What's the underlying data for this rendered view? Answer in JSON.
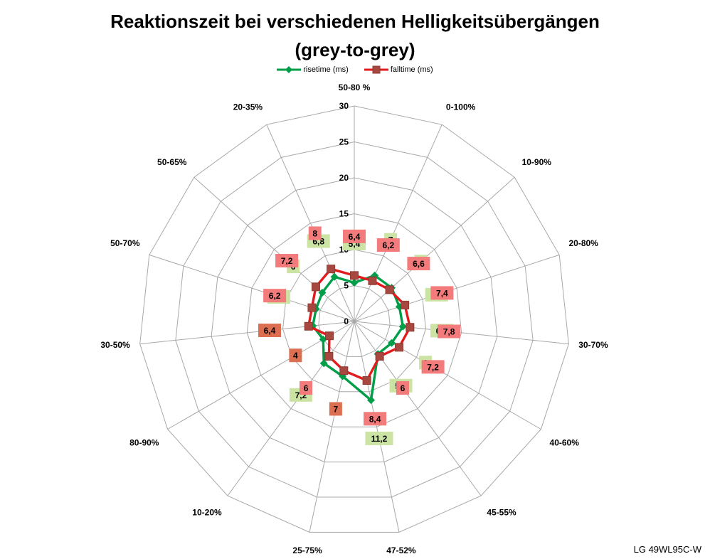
{
  "title": {
    "line1": "Reaktionszeit bei verschiedenen Helligkeitsübergängen",
    "line2": "(grey-to-grey)"
  },
  "footer": "LG 49WL95C-W",
  "chart_data": {
    "type": "radar",
    "categories": [
      "50-80 %",
      "0-100%",
      "10-90%",
      "20-80%",
      "30-70%",
      "40-60%",
      "45-55%",
      "47-52%",
      "25-75%",
      "10-20%",
      "80-90%",
      "30-50%",
      "50-70%",
      "50-65%",
      "20-35%"
    ],
    "axis": {
      "min": 0,
      "max": 30,
      "step": 5,
      "ticks": [
        "0",
        "5",
        "10",
        "15",
        "20",
        "25",
        "30"
      ]
    },
    "grid_color": "#a8a8a8",
    "series": [
      {
        "name": "risetime (ms)",
        "line_color": "#009E48",
        "marker": "diamond",
        "marker_color": "#009E48",
        "label_box_color": "#cbe3a3",
        "values": [
          5.4,
          7,
          7,
          6.6,
          6.8,
          6,
          5.6,
          11.2,
          7.8,
          7.2,
          5,
          5.8,
          5.6,
          6,
          6.8
        ],
        "labels": [
          "5,4",
          "7",
          "7",
          "6,6",
          "6,8",
          "6",
          "5,6",
          "11,2",
          null,
          "7,2",
          null,
          null,
          "5,6",
          "6",
          "6,8"
        ]
      },
      {
        "name": "falltime (ms)",
        "line_color": "#E31A1C",
        "marker": "square",
        "marker_color": "#A74840",
        "label_box_color": "#f37b7b",
        "label_box_color_dark": "#dc6f51",
        "dark_boxes": [
          8,
          10,
          11
        ],
        "values": [
          6.4,
          6.2,
          6.6,
          7.4,
          7.8,
          7.2,
          6,
          8.4,
          7,
          6,
          4,
          6.4,
          6.2,
          7.2,
          8
        ],
        "labels": [
          "6,4",
          "6,2",
          "6,6",
          "7,4",
          "7,8",
          "7,2",
          "6",
          "8,4",
          "7",
          "6",
          "4",
          "6,4",
          "6,2",
          "7,2",
          "8"
        ]
      }
    ]
  }
}
